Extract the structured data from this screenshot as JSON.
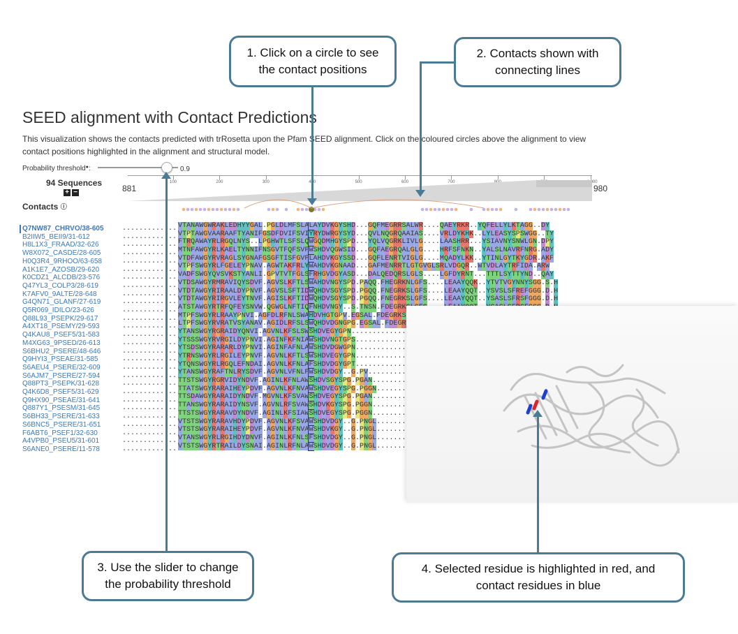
{
  "callouts": {
    "c1": "1. Click on a circle to see\nthe contact positions",
    "c2": "2. Contacts shown with\nconnecting lines",
    "c3": "3. Use the slider to change\nthe probability threshold",
    "c4": "4. Selected residue is highlighted in red, and\ncontact residues in blue"
  },
  "page": {
    "title": "SEED alignment with Contact Predictions",
    "description": "This visualization shows the contacts predicted with trRosetta upon the Pfam SEED alignment. Click on the coloured circles above the alignment to view contact positions highlighted in the alignment and structural model.",
    "threshold_label": "Probability threshold",
    "threshold_value": "0.9",
    "threshold_fraction": 0.9,
    "sequence_count": "94 Sequences",
    "contacts_label": "Contacts"
  },
  "ruler": {
    "start": "881",
    "end": "980",
    "ticks": [
      "100",
      "200",
      "300",
      "400",
      "500",
      "600",
      "700",
      "800",
      "900",
      "1,000"
    ]
  },
  "sequences": [
    {
      "name": "Q7NW87_CHRVO/38-605",
      "seq": "VTANAWGWRAKLEDHYYGAL.PGLDLMFSLALAYDVKGYSHD...GQFMEGRRSALWR....QAEYRKR..YQFELLYLKTAGG..DY"
    },
    {
      "name": "B2IIW5_BEII9/31-612",
      "seq": "VTPTAWGVAARAAFTYANIFGSDFDVIFSVIYRYDWRGYSYD...QVLNQGRQAAIAS....VRLDYKHK..LYLEASYSPSWGG..TY"
    },
    {
      "name": "H8L1X3_FRAAD/32-626",
      "seq": "FTRQAWAYRLRGQLNYS..LPGHWTLSFSLQWGQDMHGYSPD...YQLVQGRKLIVLG....LAASHRR...YSIAVNYSNWLGN.DPY"
    },
    {
      "name": "W8X072_CASDE/28-605",
      "seq": "MTNFAWGYRLKAELTYNNIFNSGVTFQFSVFWSHDVQGWSID...GQFAEGRQALGLG....HRFSFNKN..YALSLNAVRFNRG.ADY"
    },
    {
      "name": "H0Q3R4_9RHOO/63-658",
      "seq": "VTDFAWGYRVRAGLSYGNAFGSGFTISFGVFLAHDVKGYSSD...GQFLENRTVIGLG....MQADYLKK..YTINLGYTKYGDR.AKF"
    },
    {
      "name": "A1K1E7_AZOSB/29-620",
      "seq": "VTPFSWGYRLFGELEYPNAV.AGWTAKFRLYWAHDVKGNAAD...GAFMENRRTLGTGVGLSRLVDGQR..WTVDLAYTRFIDA.ARW"
    },
    {
      "name": "K0CDZ1_ALCDB/23-576",
      "seq": "VADFSWGYQVSVKSTYANLI.GPVTVTFGLSFRHGVDGYASD...DALQEDQRSLGLS....LGFDYRNT...TTTLSYTTYND..QAY"
    },
    {
      "name": "Q47YL3_COLP3/28-619",
      "seq": "VTDSAWGYRMRAVIQYSDVF.AGVSLKFTLSWAHDVNGYSPD.PAQQ.FHEGRKNLGFS....LEAAYQQK..YTVTVGYNNYSGG.S.H"
    },
    {
      "name": "K7AFV0_9ALTE/28-648",
      "seq": "VTDTAWGYRIRAALDYPNVF.AGVSLSFTIDWQHDVSGYSPD.PGQQ.FNEGRKSLGFS....LEAAYQQT..YSVSLSFREFGGG.D.H"
    },
    {
      "name": "G4QN71_GLANF/27-619",
      "seq": "VTDTAWGYRIRGVLEYTNVF.AGISLKFTIDWQHDVSGYSPD.PGQQ.FNEGRKSLGFS....LEAAYQQT..YSASLSFRSFGGG.D.H"
    },
    {
      "name": "Q5R069_IDILO/23-626",
      "seq": "ATSTAWGYRTRFQFEYSNVW.QGWGLNFTIQFNHDVNGY..S.TNSN.FDEGRKSLGFS....LEAAYQQT..YSASLSFRSFGGG.D.H"
    },
    {
      "name": "Q88L93_PSEPK/29-617",
      "seq": "MTPFSWGYRLRAAYPNVI.AGFDLRFNLSWAHDVHGTGPV.EGSAL.FDEGRKSLGFS....LEAAYQQT..YSASLSFRSFGGG.D.H"
    },
    {
      "name": "A4XT18_PSEMY/29-593",
      "seq": "LTPFSWGYRVRATVSYANAV.AGIDLRFSLSWQHDVDGNGPG.EGSAL.FDEGRKSLGFS....LEAAYQQT..YSASLSFRSFGGG.D.H"
    },
    {
      "name": "Q4KAU8_PSEF5/31-583",
      "seq": "YTANSWGYRGRAIDYQNVI.AGVNLKFSLSWSHDVEGYGPN.............................................."
    },
    {
      "name": "M4XG63_9PSED/26-613",
      "seq": "YTSSSWGYRVRGILDYPNVI.AGINFKFNIAWSHDVNGTGPS.............................................."
    },
    {
      "name": "S6BHU2_PSERE/48-646",
      "seq": "YTSDSWGYRARARLDYPNVI.AGINFAFNLAWSHDVDGWGPN.............................................."
    },
    {
      "name": "Q9HYI3_PSEAE/31-585",
      "seq": "YTRNSWGYRLRGILEYPNVF.AGVNLKFTLSWSHDVEGYGPN.............................................."
    },
    {
      "name": "S6AEU4_PSERE/32-609",
      "seq": "YTQNSWGYRLRGQLEFNDAI.AGVNLKFNLAFSHDVDGYGPT.............................................."
    },
    {
      "name": "S6AJM7_PSERE/27-594",
      "seq": "YTANSWGYRAFTNLRYSDVF.AGVNLVFNLFWSHDVDGY..G.PV..........................................."
    },
    {
      "name": "Q88PT3_PSEPK/31-628",
      "seq": "TTSTSWGYRGRVIDYNDVF.AGINLKFNLAWSHDVSGYSPG.PGAN.........................................."
    },
    {
      "name": "Q4K6D8_PSEF5/31-629",
      "seq": "TTATSWGYRARAIHEYPDVF.AGVNLKFNVAWSHDVEGYSPG.PGGN.........................................."
    },
    {
      "name": "Q9HX90_PSEAE/31-641",
      "seq": "TTSDAWGYRARAIDYNDVF.MGVNLKFSVAWSHDVEGYSPG.PGAN.........................................."
    },
    {
      "name": "Q887Y1_PSESM/31-645",
      "seq": "TTANSWGYRARAIDYNSVF.AGVNLRFSVAWSHDVKGYSPG.PGGN.........................................."
    },
    {
      "name": "S6BH33_PSERE/31-633",
      "seq": "TTSTSWGYRARAVDYNDVF.AGINLKFSIAWSHDVEGYSPG.PGGN.........................................."
    },
    {
      "name": "S6BNC5_PSERE/31-651",
      "seq": "VTSTSWGYRARAVHDYPDVF.AGVNLKFSVAWSHDVDGY..G.PNGL.........................................."
    },
    {
      "name": "F6ABT6_PSEF1/32-630",
      "seq": "VTSTSWGYRARAIHEYPDVF.AGVNLKFNVAWSHDVKGY..G.PNGL.........................................."
    },
    {
      "name": "A4VPB0_PSEU5/31-601",
      "seq": "VTANSWGYRLRGIHDYDNVF.AGINLKFNLSFSHDVDGY..G.PNGL.........................................."
    },
    {
      "name": "S6ANE0_PSERE/11-578",
      "seq": "VTSTSWGYRTRAILDYSNAI.AGINLRFNLAWSHDVDGY..G.PNGL.........................................."
    }
  ],
  "colors": {
    "callout_border": "#4b7a93",
    "link": "#3b78b8",
    "selected_residue": "#e0242a",
    "contact_residue": "#1d3fcf"
  }
}
